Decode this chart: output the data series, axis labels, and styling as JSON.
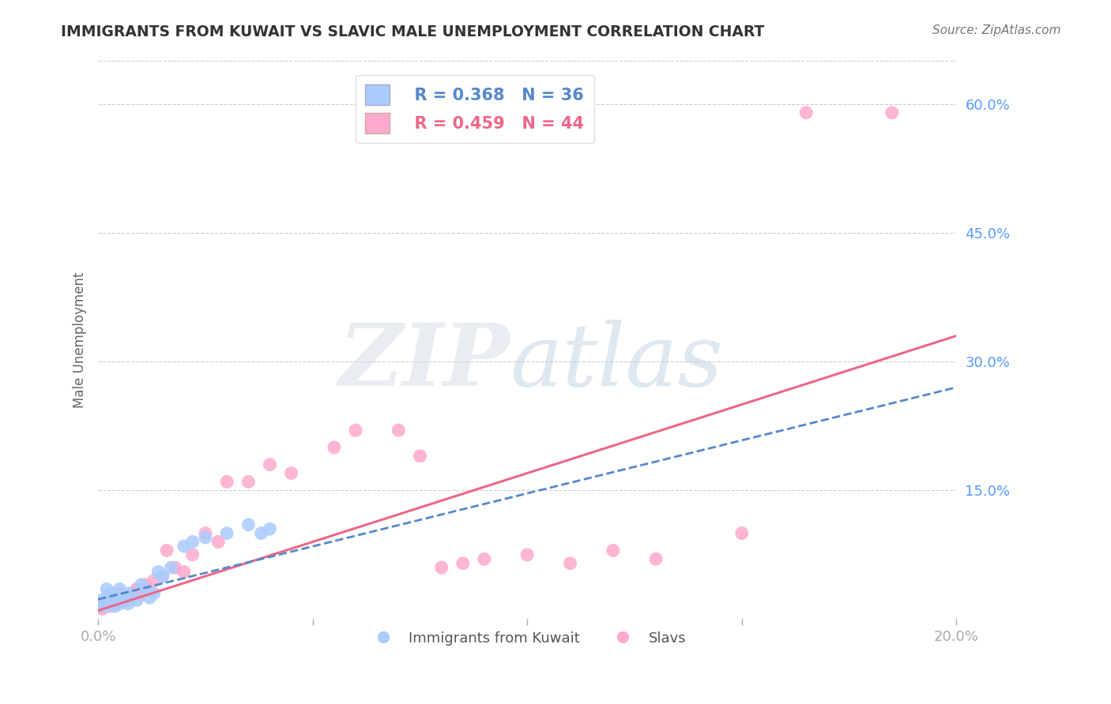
{
  "title": "IMMIGRANTS FROM KUWAIT VS SLAVIC MALE UNEMPLOYMENT CORRELATION CHART",
  "source": "Source: ZipAtlas.com",
  "ylabel": "Male Unemployment",
  "xlim": [
    0.0,
    0.2
  ],
  "ylim": [
    0.0,
    0.65
  ],
  "ytick_positions": [
    0.15,
    0.3,
    0.45,
    0.6
  ],
  "ytick_labels": [
    "15.0%",
    "30.0%",
    "45.0%",
    "60.0%"
  ],
  "legend_labels": [
    "Immigrants from Kuwait",
    "Slavs"
  ],
  "blue_R": 0.368,
  "blue_N": 36,
  "pink_R": 0.459,
  "pink_N": 44,
  "blue_color": "#aaccff",
  "pink_color": "#ffaacc",
  "blue_line_color": "#5588cc",
  "pink_line_color": "#ee6688",
  "background_color": "#ffffff",
  "grid_color": "#cccccc",
  "title_color": "#333333",
  "axis_color": "#5599ff",
  "blue_line_x0": 0.0,
  "blue_line_y0": 0.023,
  "blue_line_x1": 0.2,
  "blue_line_y1": 0.27,
  "pink_line_x0": 0.0,
  "pink_line_y0": 0.01,
  "pink_line_x1": 0.2,
  "pink_line_y1": 0.33,
  "blue_scatter_x": [
    0.0005,
    0.001,
    0.001,
    0.0015,
    0.002,
    0.002,
    0.002,
    0.003,
    0.003,
    0.003,
    0.004,
    0.004,
    0.004,
    0.005,
    0.005,
    0.005,
    0.006,
    0.006,
    0.007,
    0.007,
    0.008,
    0.009,
    0.01,
    0.011,
    0.012,
    0.013,
    0.014,
    0.015,
    0.017,
    0.02,
    0.022,
    0.025,
    0.03,
    0.035,
    0.038,
    0.04
  ],
  "blue_scatter_y": [
    0.018,
    0.015,
    0.022,
    0.02,
    0.015,
    0.025,
    0.035,
    0.018,
    0.022,
    0.03,
    0.015,
    0.02,
    0.025,
    0.018,
    0.022,
    0.035,
    0.02,
    0.025,
    0.018,
    0.03,
    0.025,
    0.022,
    0.04,
    0.035,
    0.025,
    0.03,
    0.055,
    0.05,
    0.06,
    0.085,
    0.09,
    0.095,
    0.1,
    0.11,
    0.1,
    0.105
  ],
  "pink_scatter_x": [
    0.0005,
    0.001,
    0.001,
    0.002,
    0.002,
    0.003,
    0.003,
    0.004,
    0.004,
    0.005,
    0.005,
    0.006,
    0.007,
    0.008,
    0.009,
    0.01,
    0.011,
    0.012,
    0.013,
    0.015,
    0.016,
    0.018,
    0.02,
    0.022,
    0.025,
    0.028,
    0.03,
    0.035,
    0.04,
    0.045,
    0.055,
    0.06,
    0.07,
    0.075,
    0.08,
    0.085,
    0.09,
    0.1,
    0.11,
    0.12,
    0.13,
    0.15,
    0.165,
    0.185
  ],
  "pink_scatter_y": [
    0.015,
    0.012,
    0.02,
    0.018,
    0.025,
    0.015,
    0.022,
    0.018,
    0.025,
    0.02,
    0.03,
    0.025,
    0.022,
    0.03,
    0.035,
    0.028,
    0.04,
    0.035,
    0.045,
    0.05,
    0.08,
    0.06,
    0.055,
    0.075,
    0.1,
    0.09,
    0.16,
    0.16,
    0.18,
    0.17,
    0.2,
    0.22,
    0.22,
    0.19,
    0.06,
    0.065,
    0.07,
    0.075,
    0.065,
    0.08,
    0.07,
    0.1,
    0.59,
    0.59
  ]
}
